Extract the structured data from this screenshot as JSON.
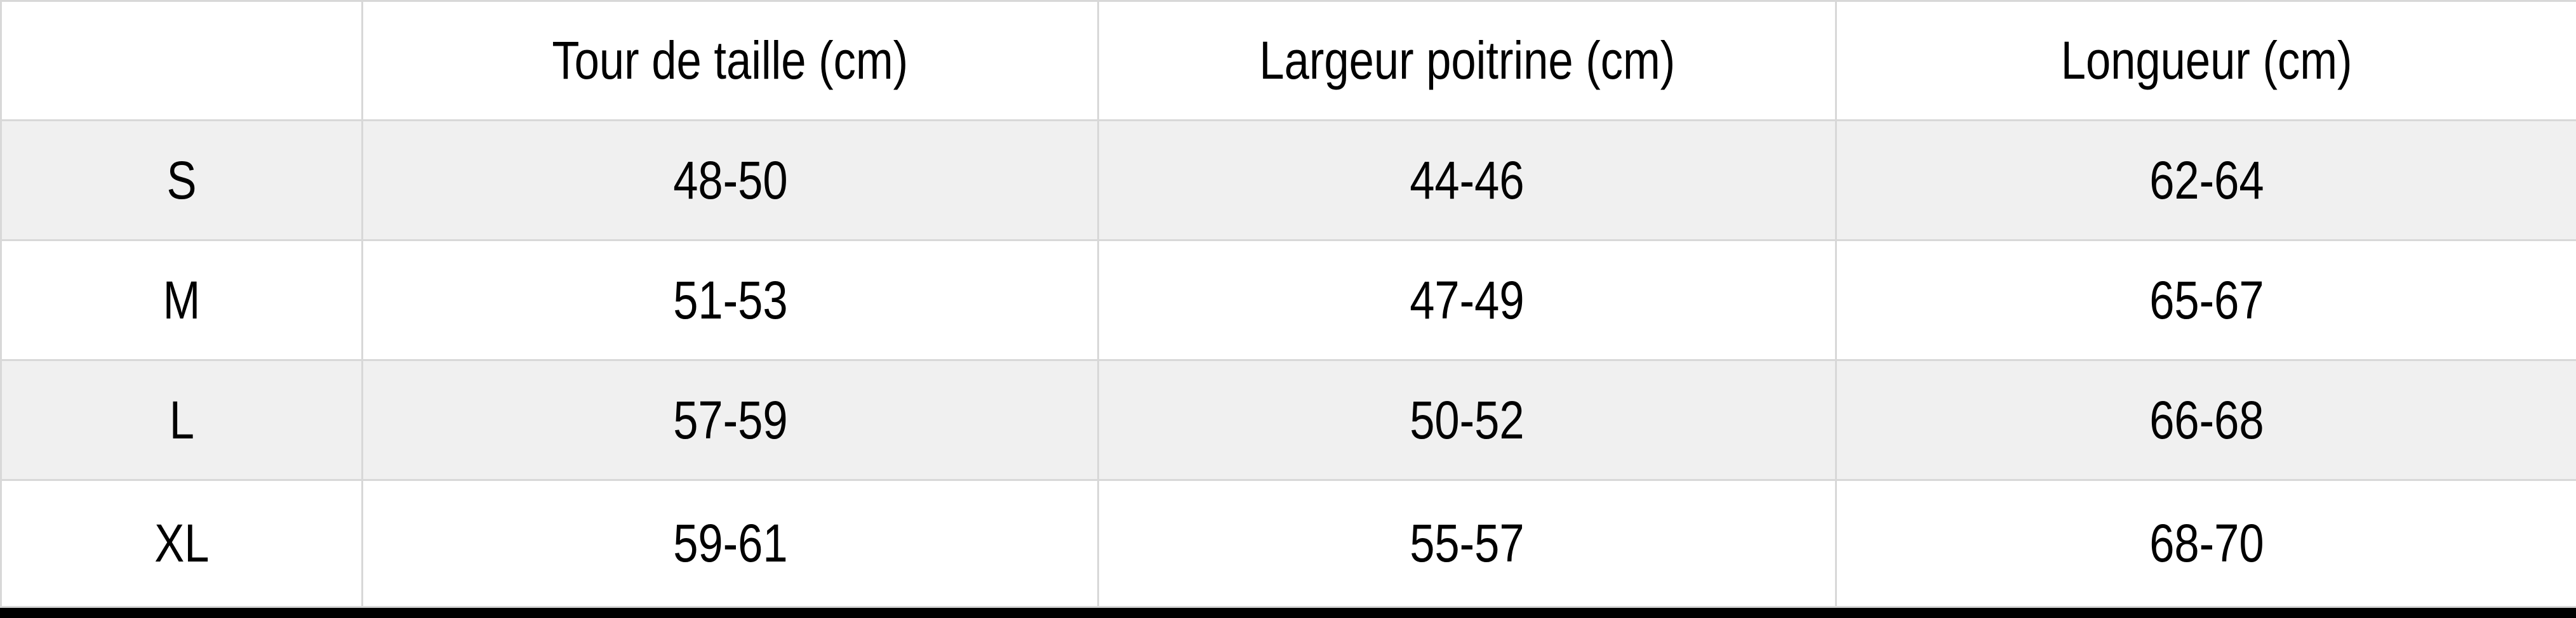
{
  "chart_data": {
    "type": "table",
    "columns": [
      "",
      "Tour de taille (cm)",
      "Largeur poitrine (cm)",
      "Longueur (cm)"
    ],
    "rows": [
      [
        "S",
        "48-50",
        "44-46",
        "62-64"
      ],
      [
        "M",
        "51-53",
        "47-49",
        "65-67"
      ],
      [
        "L",
        "57-59",
        "50-52",
        "66-68"
      ],
      [
        "XL",
        "59-61",
        "55-57",
        "68-70"
      ]
    ],
    "layout_hints": {
      "row_striping": "alternating gray starting at first data row",
      "grid": "on",
      "bottom_rule": "thick black bar"
    }
  },
  "colors": {
    "row_background": "#ffffff",
    "row_alt_background": "#f0f0f0",
    "grid_border": "#d8d8d8",
    "outer_border": "#d2d2d2",
    "bottom_bar": "#000000",
    "text": "#000000"
  }
}
